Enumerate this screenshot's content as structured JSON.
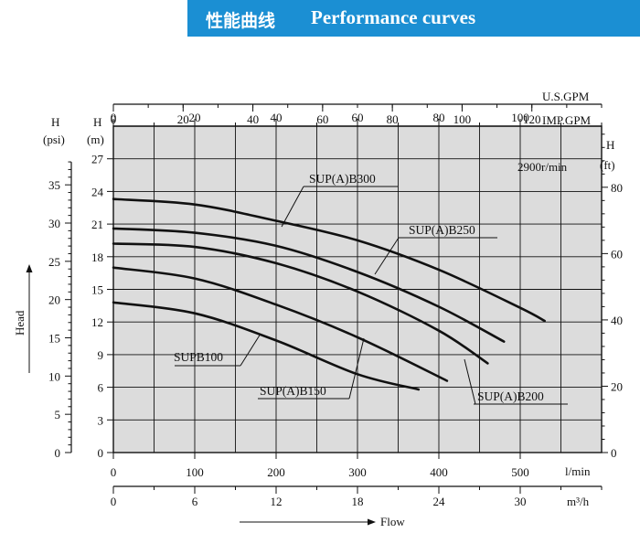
{
  "banner": {
    "title_cn": "性能曲线",
    "title_en": "Performance curves",
    "color": "#1b8fd3"
  },
  "chart_data": {
    "type": "line",
    "annotation": "2900r/min",
    "grid": true,
    "plot_bg": "#dcdcdc",
    "xlabel": "Flow",
    "ylabel": "Head",
    "axes": {
      "usgpm": {
        "unit": "U.S.GPM",
        "range": [
          0,
          140
        ],
        "ticks": [
          0,
          20,
          40,
          60,
          80,
          100,
          120
        ]
      },
      "impgpm": {
        "unit": "IMP.GPM",
        "range": [
          0,
          120
        ],
        "ticks": [
          0,
          20,
          40,
          60,
          80,
          100
        ]
      },
      "lmin": {
        "unit": "l/min",
        "range": [
          0,
          600
        ],
        "ticks": [
          0,
          100,
          200,
          300,
          400,
          500
        ]
      },
      "m3h": {
        "unit": "m³/h",
        "range": [
          0,
          36
        ],
        "ticks": [
          0,
          6,
          12,
          18,
          24,
          30
        ]
      },
      "psi": {
        "label": "H",
        "unit": "(psi)",
        "ticks": [
          0,
          5,
          10,
          15,
          20,
          25,
          30,
          35
        ]
      },
      "m": {
        "label": "H",
        "unit": "(m)",
        "ylim": [
          0,
          30
        ],
        "ticks": [
          0,
          3,
          6,
          9,
          12,
          15,
          18,
          21,
          24,
          27
        ]
      },
      "ft": {
        "label": "H",
        "unit": "(ft)",
        "ticks": [
          0,
          20,
          40,
          60,
          80
        ]
      }
    },
    "series": [
      {
        "name": "SUPB100",
        "x": [
          0,
          100,
          200,
          300,
          375
        ],
        "y": [
          13.8,
          12.8,
          10.3,
          7.2,
          5.8
        ]
      },
      {
        "name": "SUP(A)B150",
        "x": [
          0,
          100,
          200,
          300,
          410
        ],
        "y": [
          17.0,
          16.0,
          13.6,
          10.6,
          6.6
        ]
      },
      {
        "name": "SUP(A)B200",
        "x": [
          0,
          100,
          200,
          300,
          400,
          460
        ],
        "y": [
          19.2,
          18.9,
          17.4,
          14.8,
          11.2,
          8.2
        ]
      },
      {
        "name": "SUP(A)B250",
        "x": [
          0,
          100,
          200,
          300,
          400,
          480
        ],
        "y": [
          20.6,
          20.2,
          19.0,
          16.6,
          13.4,
          10.2
        ]
      },
      {
        "name": "SUP(A)B300",
        "x": [
          0,
          100,
          200,
          300,
          400,
          500,
          530
        ],
        "y": [
          23.3,
          22.8,
          21.3,
          19.5,
          16.8,
          13.3,
          12.1
        ]
      }
    ]
  }
}
